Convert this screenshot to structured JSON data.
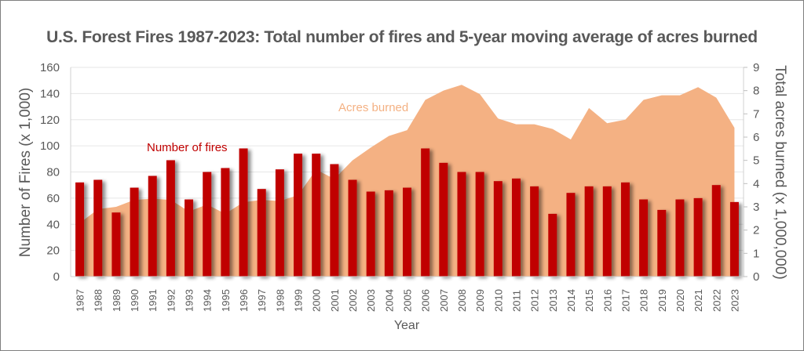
{
  "chart_data": {
    "type": "bar",
    "title": "U.S. Forest Fires 1987-2023: Total number of fires and 5-year moving average of acres burned",
    "xlabel": "Year",
    "ylabel": "Number of Fires (x 1,000)",
    "y2label": "Total acres burned (x 1,000,000)",
    "ylim": [
      0,
      160
    ],
    "y2lim": [
      0,
      9
    ],
    "yticks": [
      0,
      20,
      40,
      60,
      80,
      100,
      120,
      140,
      160
    ],
    "y2ticks": [
      0,
      1,
      2,
      3,
      4,
      5,
      6,
      7,
      8,
      9
    ],
    "grid": true,
    "categories": [
      "1987",
      "1988",
      "1989",
      "1990",
      "1991",
      "1992",
      "1993",
      "1994",
      "1995",
      "1996",
      "1997",
      "1998",
      "1999",
      "2000",
      "2001",
      "2002",
      "2003",
      "2004",
      "2005",
      "2006",
      "2007",
      "2008",
      "2009",
      "2010",
      "2011",
      "2012",
      "2013",
      "2014",
      "2015",
      "2016",
      "2017",
      "2018",
      "2019",
      "2020",
      "2021",
      "2022",
      "2023"
    ],
    "series": [
      {
        "name": "Number of fires",
        "type": "bar",
        "axis": "left",
        "color": "#c00000",
        "values": [
          72,
          74,
          49,
          68,
          77,
          89,
          59,
          80,
          83,
          98,
          67,
          82,
          94,
          94,
          86,
          74,
          65,
          66,
          68,
          98,
          87,
          80,
          80,
          73,
          75,
          69,
          48,
          64,
          69,
          69,
          72,
          59,
          51,
          59,
          60,
          70,
          57
        ]
      },
      {
        "name": "Acres burned",
        "type": "area",
        "axis": "right",
        "color": "#f4b183",
        "values": [
          2.3,
          2.9,
          3.0,
          3.3,
          3.35,
          3.3,
          2.8,
          3.1,
          2.7,
          3.2,
          3.3,
          3.25,
          3.5,
          4.6,
          4.2,
          5.0,
          5.55,
          6.05,
          6.3,
          7.6,
          8.0,
          8.25,
          7.85,
          6.8,
          6.55,
          6.55,
          6.35,
          5.9,
          7.25,
          6.6,
          6.75,
          7.6,
          7.8,
          7.8,
          8.15,
          7.7,
          6.4
        ]
      }
    ],
    "annotations": [
      {
        "text": "Number of fires",
        "color": "#c00000"
      },
      {
        "text": "Acres burned",
        "color": "#f4b183"
      }
    ]
  }
}
